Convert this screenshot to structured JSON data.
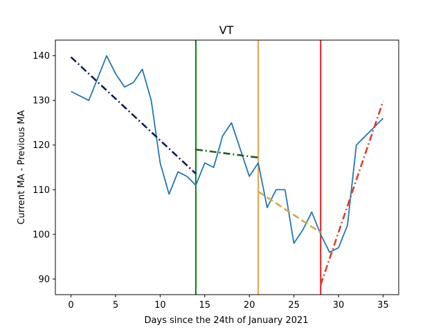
{
  "chart_data": {
    "type": "line",
    "title": "VT",
    "xlabel": "Days since the 24th of January 2021",
    "ylabel": "Current MA - Previous MA",
    "xlim": [
      -1.75,
      36.75
    ],
    "ylim": [
      86.5,
      143.5
    ],
    "xticks": [
      0,
      5,
      10,
      15,
      20,
      25,
      30,
      35
    ],
    "yticks": [
      90,
      100,
      110,
      120,
      130,
      140
    ],
    "grid": false,
    "legend": "none",
    "series": [
      {
        "color": "#1f77b4",
        "style": "solid",
        "x": [
          0,
          1,
          2,
          3,
          4,
          5,
          6,
          7,
          8,
          9,
          10,
          11,
          12,
          13,
          14,
          15,
          16,
          17,
          18,
          19,
          20,
          21,
          22,
          23,
          24,
          25,
          26,
          27,
          28,
          29,
          30,
          31,
          32,
          33,
          34,
          35
        ],
        "y": [
          132,
          131,
          130,
          135,
          140,
          136,
          133,
          134,
          137,
          130,
          116,
          109,
          114,
          113,
          111,
          116,
          115,
          122,
          125,
          119,
          113,
          116,
          106,
          110,
          110,
          98,
          101,
          105,
          100,
          96,
          97,
          102,
          120,
          122,
          124,
          126
        ]
      }
    ],
    "trend_lines": [
      {
        "color": "#0a1a5c",
        "style": "dashdot",
        "x": [
          0,
          14
        ],
        "y": [
          139.7,
          113.6
        ]
      },
      {
        "color": "#1b5e20",
        "style": "dashdot",
        "x": [
          14,
          21
        ],
        "y": [
          119.0,
          117.2
        ]
      },
      {
        "color": "#d4a94a",
        "style": "dashed",
        "x": [
          21,
          28
        ],
        "y": [
          109.6,
          100.4
        ]
      },
      {
        "color": "#d9402b",
        "style": "dashdot",
        "x": [
          28,
          35
        ],
        "y": [
          88.7,
          129.8
        ]
      }
    ],
    "vlines": [
      {
        "x": 14,
        "color": "#008000"
      },
      {
        "x": 21,
        "color": "#e8a04a"
      },
      {
        "x": 28,
        "color": "#e41a1c"
      }
    ]
  }
}
